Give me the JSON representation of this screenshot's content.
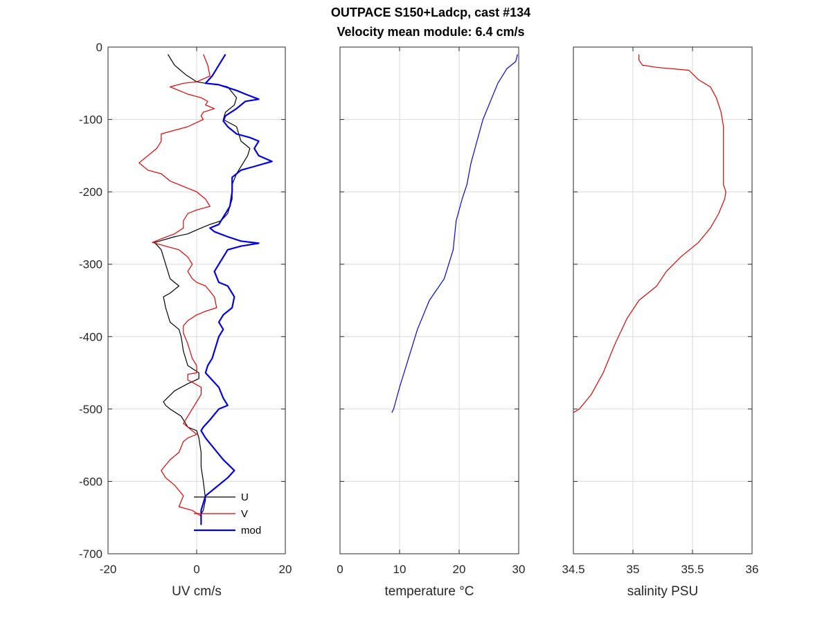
{
  "figure": {
    "title_line1": "OUTPACE S150+Ladcp, cast #134",
    "title_line2": "Velocity mean module:  6.4 cm/s"
  },
  "chart_data": [
    {
      "type": "line",
      "xlabel": "UV cm/s",
      "ylabel": "",
      "xlim": [
        -20,
        20
      ],
      "ylim": [
        -700,
        0
      ],
      "xticks": [
        -20,
        0,
        20
      ],
      "yticks": [
        0,
        -100,
        -200,
        -300,
        -400,
        -500,
        -600,
        -700
      ],
      "grid": true,
      "legend": {
        "position": "bottom-right",
        "entries": [
          "U",
          "V",
          "mod"
        ]
      },
      "series": [
        {
          "name": "U",
          "color": "#000000",
          "width": 1.2,
          "points": [
            [
              -6.5,
              -10
            ],
            [
              -5,
              -25
            ],
            [
              -2.5,
              -38
            ],
            [
              0,
              -48
            ],
            [
              2,
              -50
            ],
            [
              5,
              -52
            ],
            [
              7,
              -55
            ],
            [
              9,
              -70
            ],
            [
              8.5,
              -80
            ],
            [
              6.5,
              -90
            ],
            [
              6,
              -100
            ],
            [
              9,
              -110
            ],
            [
              10,
              -130
            ],
            [
              12,
              -140
            ],
            [
              11.5,
              -150
            ],
            [
              10.5,
              -160
            ],
            [
              9,
              -175
            ],
            [
              8,
              -190
            ],
            [
              8,
              -210
            ],
            [
              7,
              -230
            ],
            [
              5.5,
              -240
            ],
            [
              3,
              -245
            ],
            [
              1,
              -250
            ],
            [
              -2,
              -258
            ],
            [
              -5,
              -262
            ],
            [
              -9.5,
              -270
            ],
            [
              -8,
              -280
            ],
            [
              -7,
              -300
            ],
            [
              -6,
              -320
            ],
            [
              -4,
              -330
            ],
            [
              -6,
              -340
            ],
            [
              -7.5,
              -345
            ],
            [
              -7,
              -360
            ],
            [
              -6,
              -380
            ],
            [
              -4,
              -390
            ],
            [
              -3.5,
              -400
            ],
            [
              -3,
              -420
            ],
            [
              -2.5,
              -430
            ],
            [
              -2,
              -440
            ],
            [
              0.5,
              -450
            ],
            [
              0.5,
              -458
            ],
            [
              -2,
              -465
            ],
            [
              -5,
              -475
            ],
            [
              -7.5,
              -490
            ],
            [
              -7,
              -495
            ],
            [
              -6,
              -500
            ],
            [
              -3.5,
              -510
            ],
            [
              -2,
              -525
            ],
            [
              0,
              -530
            ],
            [
              0.5,
              -540
            ],
            [
              1,
              -560
            ],
            [
              1,
              -580
            ],
            [
              1.5,
              -600
            ],
            [
              2,
              -625
            ],
            [
              1.5,
              -640
            ],
            [
              1,
              -645
            ],
            [
              1,
              -655
            ],
            [
              1,
              -660
            ]
          ]
        },
        {
          "name": "V",
          "color": "#e00000",
          "width": 1.2,
          "points": [
            [
              1.5,
              -10
            ],
            [
              2.5,
              -25
            ],
            [
              3,
              -40
            ],
            [
              0,
              -48
            ],
            [
              -3,
              -50
            ],
            [
              -6,
              -55
            ],
            [
              -4,
              -60
            ],
            [
              -2,
              -65
            ],
            [
              1,
              -70
            ],
            [
              2.5,
              -75
            ],
            [
              2,
              -80
            ],
            [
              4,
              -85
            ],
            [
              1.5,
              -90
            ],
            [
              1,
              -95
            ],
            [
              1.5,
              -100
            ],
            [
              -2,
              -110
            ],
            [
              -8,
              -120
            ],
            [
              -8,
              -130
            ],
            [
              -9,
              -140
            ],
            [
              -13,
              -160
            ],
            [
              -11,
              -170
            ],
            [
              -8,
              -175
            ],
            [
              -6,
              -185
            ],
            [
              -4,
              -190
            ],
            [
              -2,
              -195
            ],
            [
              0,
              -200
            ],
            [
              2,
              -210
            ],
            [
              3,
              -220
            ],
            [
              0,
              -225
            ],
            [
              -2,
              -230
            ],
            [
              -3,
              -240
            ],
            [
              -3,
              -250
            ],
            [
              -5,
              -258
            ],
            [
              -8,
              -265
            ],
            [
              -10,
              -270
            ],
            [
              -7,
              -275
            ],
            [
              -4,
              -280
            ],
            [
              -3,
              -285
            ],
            [
              -2,
              -290
            ],
            [
              -1,
              -300
            ],
            [
              -2,
              -310
            ],
            [
              -1,
              -320
            ],
            [
              0,
              -325
            ],
            [
              2,
              -330
            ],
            [
              4,
              -345
            ],
            [
              4.5,
              -360
            ],
            [
              2,
              -365
            ],
            [
              0,
              -370
            ],
            [
              -2,
              -378
            ],
            [
              -3,
              -385
            ],
            [
              -3,
              -395
            ],
            [
              -2,
              -410
            ],
            [
              -1,
              -430
            ],
            [
              0,
              -440
            ],
            [
              0,
              -450
            ],
            [
              -2,
              -452
            ],
            [
              -2,
              -460
            ],
            [
              -1,
              -463
            ],
            [
              1,
              -470
            ],
            [
              1,
              -480
            ],
            [
              0,
              -490
            ],
            [
              -2,
              -510
            ],
            [
              -3,
              -520
            ],
            [
              -1,
              -530
            ],
            [
              0,
              -535
            ],
            [
              -2,
              -540
            ],
            [
              -3,
              -545
            ],
            [
              -4,
              -560
            ],
            [
              -6,
              -570
            ],
            [
              -8,
              -585
            ],
            [
              -7,
              -595
            ],
            [
              -5,
              -605
            ],
            [
              -3,
              -620
            ],
            [
              -4,
              -635
            ],
            [
              -1,
              -640
            ],
            [
              1,
              -648
            ],
            [
              1,
              -655
            ]
          ]
        },
        {
          "name": "mod",
          "color": "#0000e6",
          "width": 2.2,
          "points": [
            [
              6.5,
              -10
            ],
            [
              5,
              -25
            ],
            [
              3.5,
              -40
            ],
            [
              2,
              -50
            ],
            [
              5,
              -52
            ],
            [
              9,
              -60
            ],
            [
              11,
              -65
            ],
            [
              14,
              -72
            ],
            [
              11,
              -75
            ],
            [
              9,
              -85
            ],
            [
              6.5,
              -95
            ],
            [
              6,
              -102
            ],
            [
              7,
              -110
            ],
            [
              9,
              -120
            ],
            [
              12,
              -125
            ],
            [
              14,
              -130
            ],
            [
              13,
              -140
            ],
            [
              14,
              -150
            ],
            [
              17,
              -158
            ],
            [
              13,
              -165
            ],
            [
              10,
              -170
            ],
            [
              8,
              -180
            ],
            [
              8,
              -190
            ],
            [
              8,
              -200
            ],
            [
              7.5,
              -220
            ],
            [
              6,
              -235
            ],
            [
              5,
              -245
            ],
            [
              3,
              -250
            ],
            [
              4,
              -255
            ],
            [
              7,
              -262
            ],
            [
              10,
              -268
            ],
            [
              14,
              -271
            ],
            [
              10,
              -275
            ],
            [
              7,
              -280
            ],
            [
              6,
              -290
            ],
            [
              5,
              -300
            ],
            [
              4,
              -310
            ],
            [
              5,
              -325
            ],
            [
              7,
              -330
            ],
            [
              8,
              -340
            ],
            [
              8.5,
              -345
            ],
            [
              8,
              -360
            ],
            [
              6,
              -370
            ],
            [
              5,
              -380
            ],
            [
              6,
              -390
            ],
            [
              5,
              -400
            ],
            [
              4,
              -420
            ],
            [
              3.5,
              -430
            ],
            [
              2.5,
              -440
            ],
            [
              2,
              -450
            ],
            [
              5,
              -470
            ],
            [
              6,
              -485
            ],
            [
              7,
              -495
            ],
            [
              5,
              -500
            ],
            [
              3,
              -515
            ],
            [
              1.5,
              -525
            ],
            [
              1,
              -530
            ],
            [
              2,
              -540
            ],
            [
              4,
              -555
            ],
            [
              6,
              -570
            ],
            [
              8.5,
              -585
            ],
            [
              7,
              -595
            ],
            [
              4,
              -610
            ],
            [
              2,
              -620
            ],
            [
              1,
              -640
            ],
            [
              1,
              -660
            ]
          ]
        }
      ]
    },
    {
      "type": "line",
      "xlabel": "temperature °C",
      "ylabel": "",
      "xlim": [
        0,
        30
      ],
      "ylim": [
        -700,
        0
      ],
      "xticks": [
        0,
        10,
        20,
        30
      ],
      "yticks": [
        0,
        -100,
        -200,
        -300,
        -400,
        -500,
        -600,
        -700
      ],
      "grid": true,
      "series": [
        {
          "name": "",
          "color": "#0000e6",
          "width": 1.2,
          "points": [
            [
              29.8,
              -10
            ],
            [
              29.5,
              -20
            ],
            [
              28,
              -30
            ],
            [
              26.5,
              -50
            ],
            [
              25,
              -80
            ],
            [
              24,
              -100
            ],
            [
              23,
              -130
            ],
            [
              22,
              -160
            ],
            [
              21.3,
              -190
            ],
            [
              20.5,
              -210
            ],
            [
              19.5,
              -240
            ],
            [
              19,
              -280
            ],
            [
              17.5,
              -320
            ],
            [
              15,
              -350
            ],
            [
              13,
              -390
            ],
            [
              11.5,
              -430
            ],
            [
              10,
              -470
            ],
            [
              9,
              -500
            ],
            [
              8.7,
              -505
            ]
          ]
        }
      ]
    },
    {
      "type": "line",
      "xlabel": "salinity PSU",
      "ylabel": "",
      "xlim": [
        34.5,
        36
      ],
      "ylim": [
        -700,
        0
      ],
      "xticks": [
        34.5,
        35,
        35.5,
        36
      ],
      "yticks": [
        0,
        -100,
        -200,
        -300,
        -400,
        -500,
        -600,
        -700
      ],
      "grid": true,
      "series": [
        {
          "name": "",
          "color": "#e00000",
          "width": 1.2,
          "points": [
            [
              35.05,
              -10
            ],
            [
              35.05,
              -18
            ],
            [
              35.08,
              -25
            ],
            [
              35.2,
              -28
            ],
            [
              35.47,
              -32
            ],
            [
              35.55,
              -45
            ],
            [
              35.65,
              -55
            ],
            [
              35.7,
              -70
            ],
            [
              35.74,
              -90
            ],
            [
              35.76,
              -110
            ],
            [
              35.76,
              -150
            ],
            [
              35.76,
              -190
            ],
            [
              35.78,
              -200
            ],
            [
              35.77,
              -210
            ],
            [
              35.72,
              -230
            ],
            [
              35.65,
              -250
            ],
            [
              35.55,
              -270
            ],
            [
              35.4,
              -290
            ],
            [
              35.28,
              -310
            ],
            [
              35.2,
              -330
            ],
            [
              35.05,
              -350
            ],
            [
              34.95,
              -375
            ],
            [
              34.85,
              -410
            ],
            [
              34.75,
              -450
            ],
            [
              34.65,
              -480
            ],
            [
              34.55,
              -500
            ],
            [
              34.5,
              -505
            ]
          ]
        }
      ]
    }
  ]
}
